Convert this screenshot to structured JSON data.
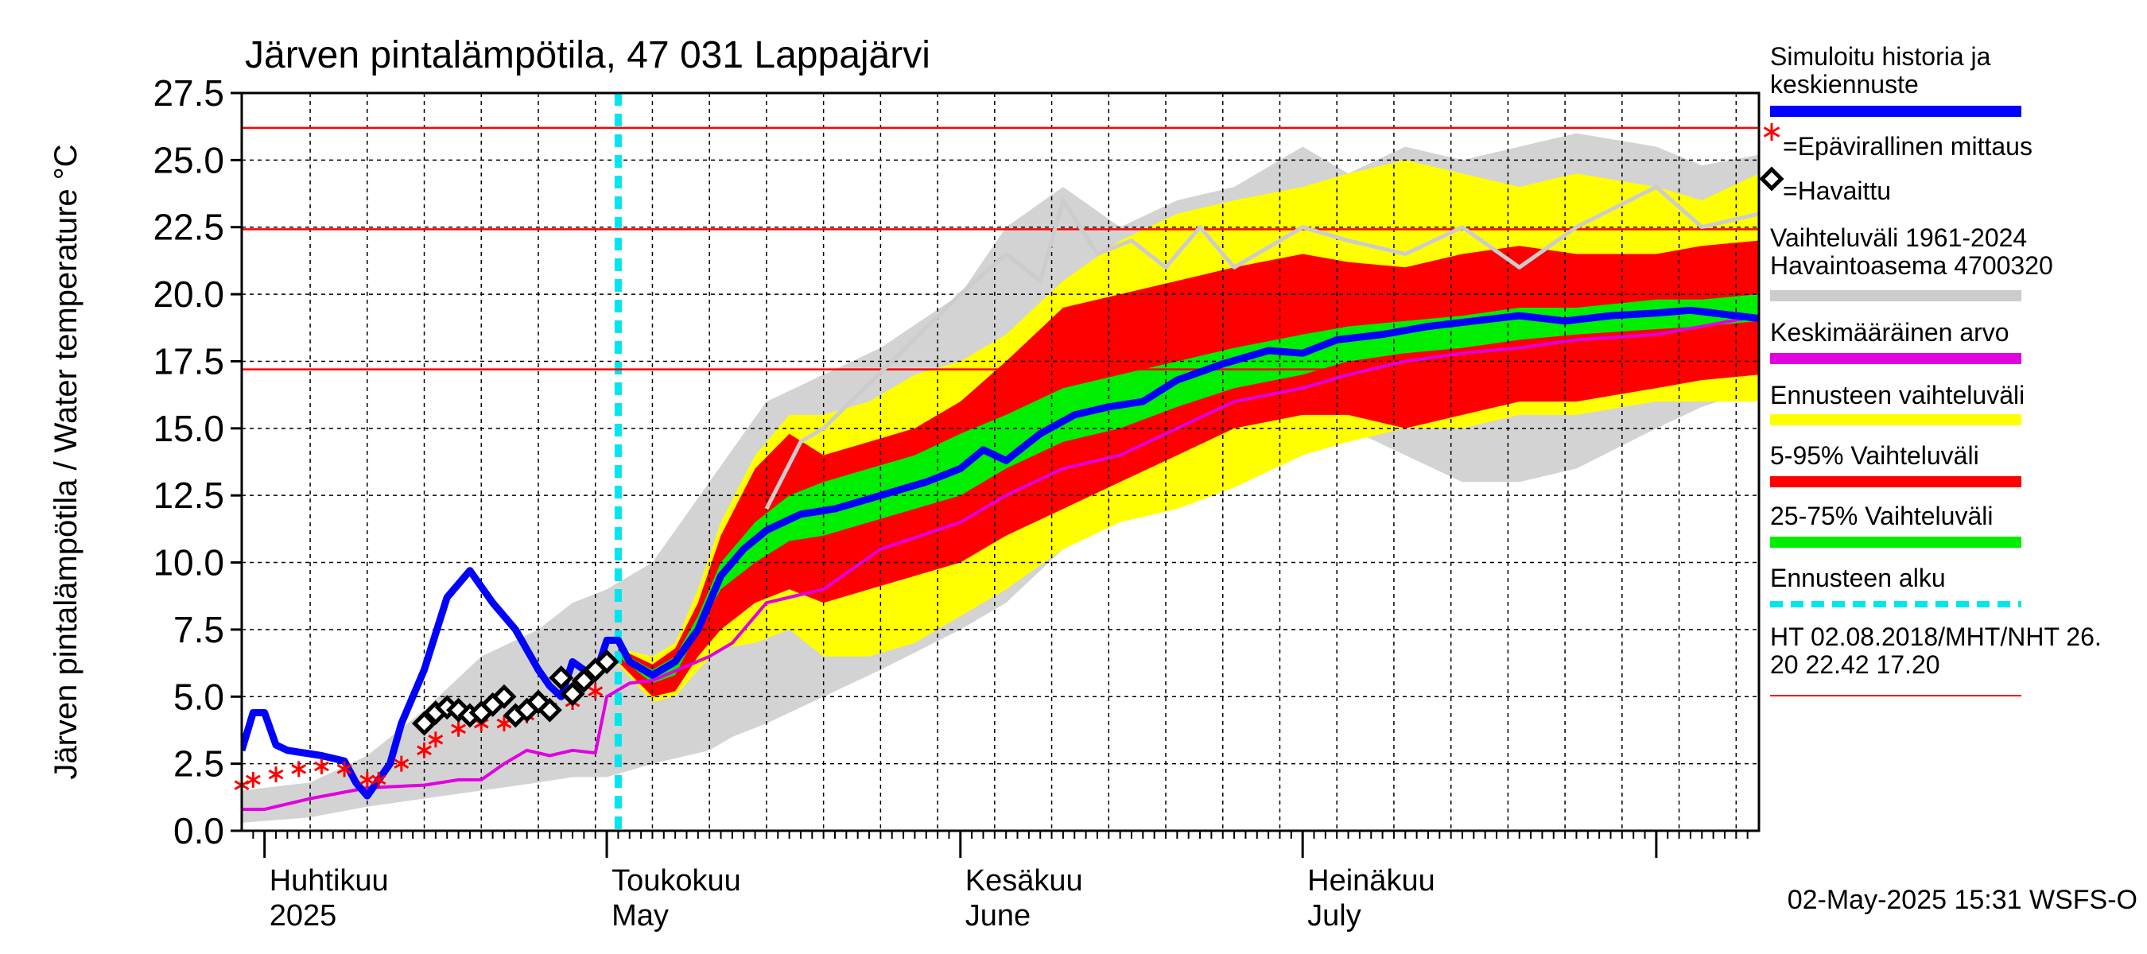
{
  "chart_data": {
    "type": "line",
    "title": "Järven pintalämpötila, 47 031 Lappajärvi",
    "ylabel": "Järven pintalämpötila / Water temperature °C",
    "ylim": [
      0,
      27.5
    ],
    "yticks": [
      "0.0",
      "2.5",
      "5.0",
      "7.5",
      "10.0",
      "12.5",
      "15.0",
      "17.5",
      "20.0",
      "22.5",
      "25.0",
      "27.5"
    ],
    "x_start": "2025-03-30",
    "x_end": "2025-08-10",
    "forecast_start": "2025-05-02",
    "month_labels": [
      {
        "fi": "Huhtikuu",
        "en": "2025",
        "date": "2025-04-01"
      },
      {
        "fi": "Toukokuu",
        "en": "May",
        "date": "2025-05-01"
      },
      {
        "fi": "Kesäkuu",
        "en": "June",
        "date": "2025-06-01"
      },
      {
        "fi": "Heinäkuu",
        "en": "July",
        "date": "2025-07-01"
      }
    ],
    "hlines": [
      {
        "name": "HT",
        "value": 26.2
      },
      {
        "name": "MHT",
        "value": 22.42
      },
      {
        "name": "NHT",
        "value": 17.2
      }
    ],
    "bands": {
      "hist_dates": [
        "2025-03-30",
        "2025-04-05",
        "2025-04-10",
        "2025-04-15",
        "2025-04-20",
        "2025-04-25",
        "2025-04-28",
        "2025-05-01",
        "2025-05-05",
        "2025-05-10",
        "2025-05-12",
        "2025-05-15",
        "2025-05-20",
        "2025-05-25",
        "2025-06-01",
        "2025-06-05",
        "2025-06-10",
        "2025-06-15",
        "2025-06-20",
        "2025-06-25",
        "2025-07-01",
        "2025-07-05",
        "2025-07-10",
        "2025-07-15",
        "2025-07-20",
        "2025-07-25",
        "2025-08-01",
        "2025-08-05",
        "2025-08-10"
      ],
      "hist_upper": [
        1.5,
        1.8,
        2.8,
        4.5,
        6.5,
        7.5,
        8.5,
        9.0,
        10.0,
        13.0,
        14.2,
        16.0,
        17.0,
        18.0,
        20.0,
        22.5,
        24.0,
        22.5,
        23.5,
        24.0,
        25.5,
        24.5,
        25.5,
        25.0,
        25.5,
        26.0,
        25.5,
        24.8,
        25.2
      ],
      "hist_lower": [
        0.3,
        0.5,
        0.9,
        1.2,
        1.5,
        1.8,
        2.0,
        2.0,
        2.5,
        3.0,
        3.5,
        4.0,
        5.0,
        6.0,
        7.5,
        8.5,
        10.5,
        12.0,
        12.5,
        13.0,
        14.0,
        15.0,
        14.0,
        13.0,
        13.0,
        13.5,
        15.0,
        15.8,
        16.5
      ],
      "fc_dates": [
        "2025-05-02",
        "2025-05-05",
        "2025-05-07",
        "2025-05-09",
        "2025-05-11",
        "2025-05-14",
        "2025-05-17",
        "2025-05-20",
        "2025-05-24",
        "2025-05-28",
        "2025-06-01",
        "2025-06-05",
        "2025-06-10",
        "2025-06-15",
        "2025-06-20",
        "2025-06-25",
        "2025-07-01",
        "2025-07-05",
        "2025-07-10",
        "2025-07-15",
        "2025-07-20",
        "2025-07-25",
        "2025-08-01",
        "2025-08-05",
        "2025-08-10"
      ],
      "p0_upper": [
        6.8,
        6.5,
        7.0,
        9.0,
        11.5,
        14.0,
        15.5,
        15.5,
        16.0,
        17.0,
        17.5,
        18.5,
        20.5,
        22.0,
        23.0,
        23.5,
        24.0,
        24.5,
        25.0,
        24.5,
        24.0,
        24.5,
        24.0,
        23.5,
        24.5
      ],
      "p95_upper": [
        6.8,
        6.2,
        6.8,
        8.5,
        11.0,
        13.5,
        14.8,
        14.0,
        14.5,
        15.0,
        16.0,
        17.5,
        19.5,
        20.0,
        20.5,
        21.0,
        21.5,
        21.2,
        21.0,
        21.5,
        21.8,
        21.5,
        21.5,
        21.8,
        22.0
      ],
      "p75_upper": [
        6.7,
        6.0,
        6.5,
        8.0,
        10.0,
        11.5,
        12.5,
        13.0,
        13.5,
        14.0,
        14.8,
        15.5,
        16.5,
        17.0,
        17.5,
        18.0,
        18.5,
        18.8,
        19.0,
        19.2,
        19.5,
        19.5,
        19.8,
        19.8,
        20.0
      ],
      "p25_lower": [
        6.5,
        5.5,
        5.8,
        7.5,
        9.0,
        10.0,
        10.8,
        11.0,
        11.5,
        12.0,
        12.5,
        13.5,
        14.5,
        15.0,
        15.8,
        16.5,
        17.0,
        17.5,
        17.8,
        18.0,
        18.3,
        18.5,
        18.7,
        18.8,
        19.0
      ],
      "p5_lower": [
        6.3,
        5.0,
        5.2,
        6.5,
        7.5,
        8.5,
        9.0,
        8.5,
        9.0,
        9.5,
        10.0,
        11.0,
        12.0,
        13.0,
        14.0,
        15.0,
        15.5,
        15.5,
        15.0,
        15.5,
        16.0,
        16.0,
        16.5,
        16.8,
        17.0
      ],
      "p100_lower": [
        6.2,
        4.8,
        5.0,
        6.0,
        6.8,
        7.0,
        7.5,
        6.5,
        6.5,
        7.0,
        8.0,
        9.0,
        10.5,
        11.5,
        12.0,
        12.8,
        14.0,
        14.5,
        15.0,
        15.0,
        15.5,
        15.5,
        16.0,
        16.0,
        16.0
      ]
    },
    "series": [
      {
        "name": "Simuloitu historia ja keskiennuste",
        "x": [
          "2025-03-30",
          "2025-03-31",
          "2025-04-01",
          "2025-04-02",
          "2025-04-03",
          "2025-04-06",
          "2025-04-08",
          "2025-04-09",
          "2025-04-10",
          "2025-04-12",
          "2025-04-13",
          "2025-04-15",
          "2025-04-17",
          "2025-04-19",
          "2025-04-21",
          "2025-04-23",
          "2025-04-25",
          "2025-04-26",
          "2025-04-27",
          "2025-04-28",
          "2025-04-29",
          "2025-04-30",
          "2025-05-01",
          "2025-05-02",
          "2025-05-03",
          "2025-05-05",
          "2025-05-07",
          "2025-05-09",
          "2025-05-11",
          "2025-05-13",
          "2025-05-15",
          "2025-05-18",
          "2025-05-21",
          "2025-05-25",
          "2025-05-29",
          "2025-06-01",
          "2025-06-03",
          "2025-06-05",
          "2025-06-08",
          "2025-06-11",
          "2025-06-14",
          "2025-06-17",
          "2025-06-20",
          "2025-06-24",
          "2025-06-28",
          "2025-07-01",
          "2025-07-04",
          "2025-07-08",
          "2025-07-12",
          "2025-07-16",
          "2025-07-20",
          "2025-07-24",
          "2025-07-28",
          "2025-08-01",
          "2025-08-04",
          "2025-08-08",
          "2025-08-10"
        ],
        "y": [
          3.0,
          4.4,
          4.4,
          3.2,
          3.0,
          2.8,
          2.6,
          1.8,
          1.3,
          2.5,
          4.0,
          6.0,
          8.7,
          9.7,
          8.5,
          7.5,
          6.0,
          5.4,
          5.0,
          6.3,
          6.0,
          5.8,
          7.1,
          7.1,
          6.3,
          5.8,
          6.3,
          7.5,
          9.5,
          10.5,
          11.2,
          11.8,
          12.0,
          12.5,
          13.0,
          13.5,
          14.2,
          13.8,
          14.8,
          15.5,
          15.8,
          16.0,
          16.8,
          17.4,
          17.9,
          17.8,
          18.3,
          18.5,
          18.8,
          19.0,
          19.2,
          19.0,
          19.2,
          19.3,
          19.4,
          19.2,
          19.1
        ],
        "color": "#0000ff"
      },
      {
        "name": "Keskimääräinen arvo",
        "x": [
          "2025-03-30",
          "2025-04-01",
          "2025-04-05",
          "2025-04-10",
          "2025-04-15",
          "2025-04-18",
          "2025-04-20",
          "2025-04-22",
          "2025-04-24",
          "2025-04-26",
          "2025-04-28",
          "2025-04-30",
          "2025-05-01",
          "2025-05-03",
          "2025-05-05",
          "2025-05-10",
          "2025-05-12",
          "2025-05-15",
          "2025-05-18",
          "2025-05-20",
          "2025-05-25",
          "2025-06-01",
          "2025-06-05",
          "2025-06-10",
          "2025-06-15",
          "2025-06-20",
          "2025-06-25",
          "2025-07-01",
          "2025-07-05",
          "2025-07-10",
          "2025-07-15",
          "2025-07-20",
          "2025-07-25",
          "2025-08-01",
          "2025-08-05",
          "2025-08-10"
        ],
        "y": [
          0.8,
          0.8,
          1.2,
          1.6,
          1.7,
          1.9,
          1.9,
          2.5,
          3.0,
          2.8,
          3.0,
          2.9,
          5.0,
          5.5,
          5.6,
          6.5,
          7.0,
          8.5,
          8.8,
          9.0,
          10.5,
          11.5,
          12.5,
          13.5,
          14.0,
          15.0,
          16.0,
          16.5,
          17.0,
          17.5,
          17.8,
          18.0,
          18.3,
          18.5,
          18.8,
          19.2
        ],
        "color": "#e000e0"
      },
      {
        "name": "Vaihteluväli 1961-2024 Havaintoasema 4700320",
        "x": [
          "2025-05-15",
          "2025-05-18",
          "2025-05-20",
          "2025-06-01",
          "2025-06-05",
          "2025-06-08",
          "2025-06-10",
          "2025-06-13",
          "2025-06-16",
          "2025-06-19",
          "2025-06-22",
          "2025-06-25",
          "2025-07-01",
          "2025-07-05",
          "2025-07-10",
          "2025-07-15",
          "2025-07-20",
          "2025-07-25",
          "2025-08-01",
          "2025-08-05",
          "2025-08-10"
        ],
        "y": [
          12.0,
          14.5,
          15.0,
          20.0,
          21.5,
          20.5,
          23.5,
          21.5,
          22.0,
          21.0,
          22.5,
          21.0,
          22.5,
          22.0,
          21.5,
          22.5,
          21.0,
          22.5,
          24.0,
          22.5,
          23.0
        ],
        "color": "#cccccc"
      }
    ],
    "points_epavirallinen": {
      "name": "=Epävirallinen mittaus",
      "x": [
        "2025-03-30",
        "2025-03-31",
        "2025-04-02",
        "2025-04-04",
        "2025-04-06",
        "2025-04-08",
        "2025-04-10",
        "2025-04-11",
        "2025-04-13",
        "2025-04-15",
        "2025-04-16",
        "2025-04-18",
        "2025-04-20",
        "2025-04-22",
        "2025-04-24",
        "2025-04-26",
        "2025-04-28",
        "2025-04-30"
      ],
      "y": [
        1.7,
        1.9,
        2.1,
        2.3,
        2.4,
        2.3,
        1.9,
        1.9,
        2.5,
        3.0,
        3.4,
        3.8,
        4.0,
        4.0,
        4.3,
        4.6,
        4.8,
        5.2
      ]
    },
    "points_havaittu": {
      "name": "=Havaittu",
      "x": [
        "2025-04-15",
        "2025-04-16",
        "2025-04-17",
        "2025-04-18",
        "2025-04-19",
        "2025-04-20",
        "2025-04-21",
        "2025-04-22",
        "2025-04-23",
        "2025-04-24",
        "2025-04-25",
        "2025-04-26",
        "2025-04-27",
        "2025-04-28",
        "2025-04-29",
        "2025-04-30",
        "2025-05-01"
      ],
      "y": [
        4.0,
        4.4,
        4.6,
        4.5,
        4.3,
        4.4,
        4.7,
        5.0,
        4.3,
        4.5,
        4.8,
        4.5,
        5.7,
        5.1,
        5.6,
        6.0,
        6.3
      ]
    }
  },
  "legend": [
    {
      "label": "Simuloitu historia ja",
      "label2": "keskiennuste",
      "kind": "line",
      "color": "#0000ff"
    },
    {
      "label": "=Epävirallinen mittaus",
      "kind": "star",
      "color": "#ff0000"
    },
    {
      "label": "=Havaittu",
      "kind": "diamond",
      "color": "#000000"
    },
    {
      "label": "Vaihteluväli 1961-2024",
      "label2": " Havaintoasema 4700320",
      "kind": "line",
      "color": "#cccccc"
    },
    {
      "label": "Keskimääräinen arvo",
      "kind": "line",
      "color": "#e000e0"
    },
    {
      "label": "Ennusteen vaihteluväli",
      "kind": "line",
      "color": "#ffff00"
    },
    {
      "label": "5-95% Vaihteluväli",
      "kind": "line",
      "color": "#ff0000"
    },
    {
      "label": "25-75% Vaihteluväli",
      "kind": "line",
      "color": "#00ee00"
    },
    {
      "label": "Ennusteen alku",
      "kind": "dashed",
      "color": "#00e5ee"
    },
    {
      "label": "HT 02.08.2018/MHT/NHT 26.",
      "label2": "20 22.42 17.20",
      "kind": "thin",
      "color": "#ff0000"
    }
  ],
  "footer": "02-May-2025 15:31 WSFS-O"
}
